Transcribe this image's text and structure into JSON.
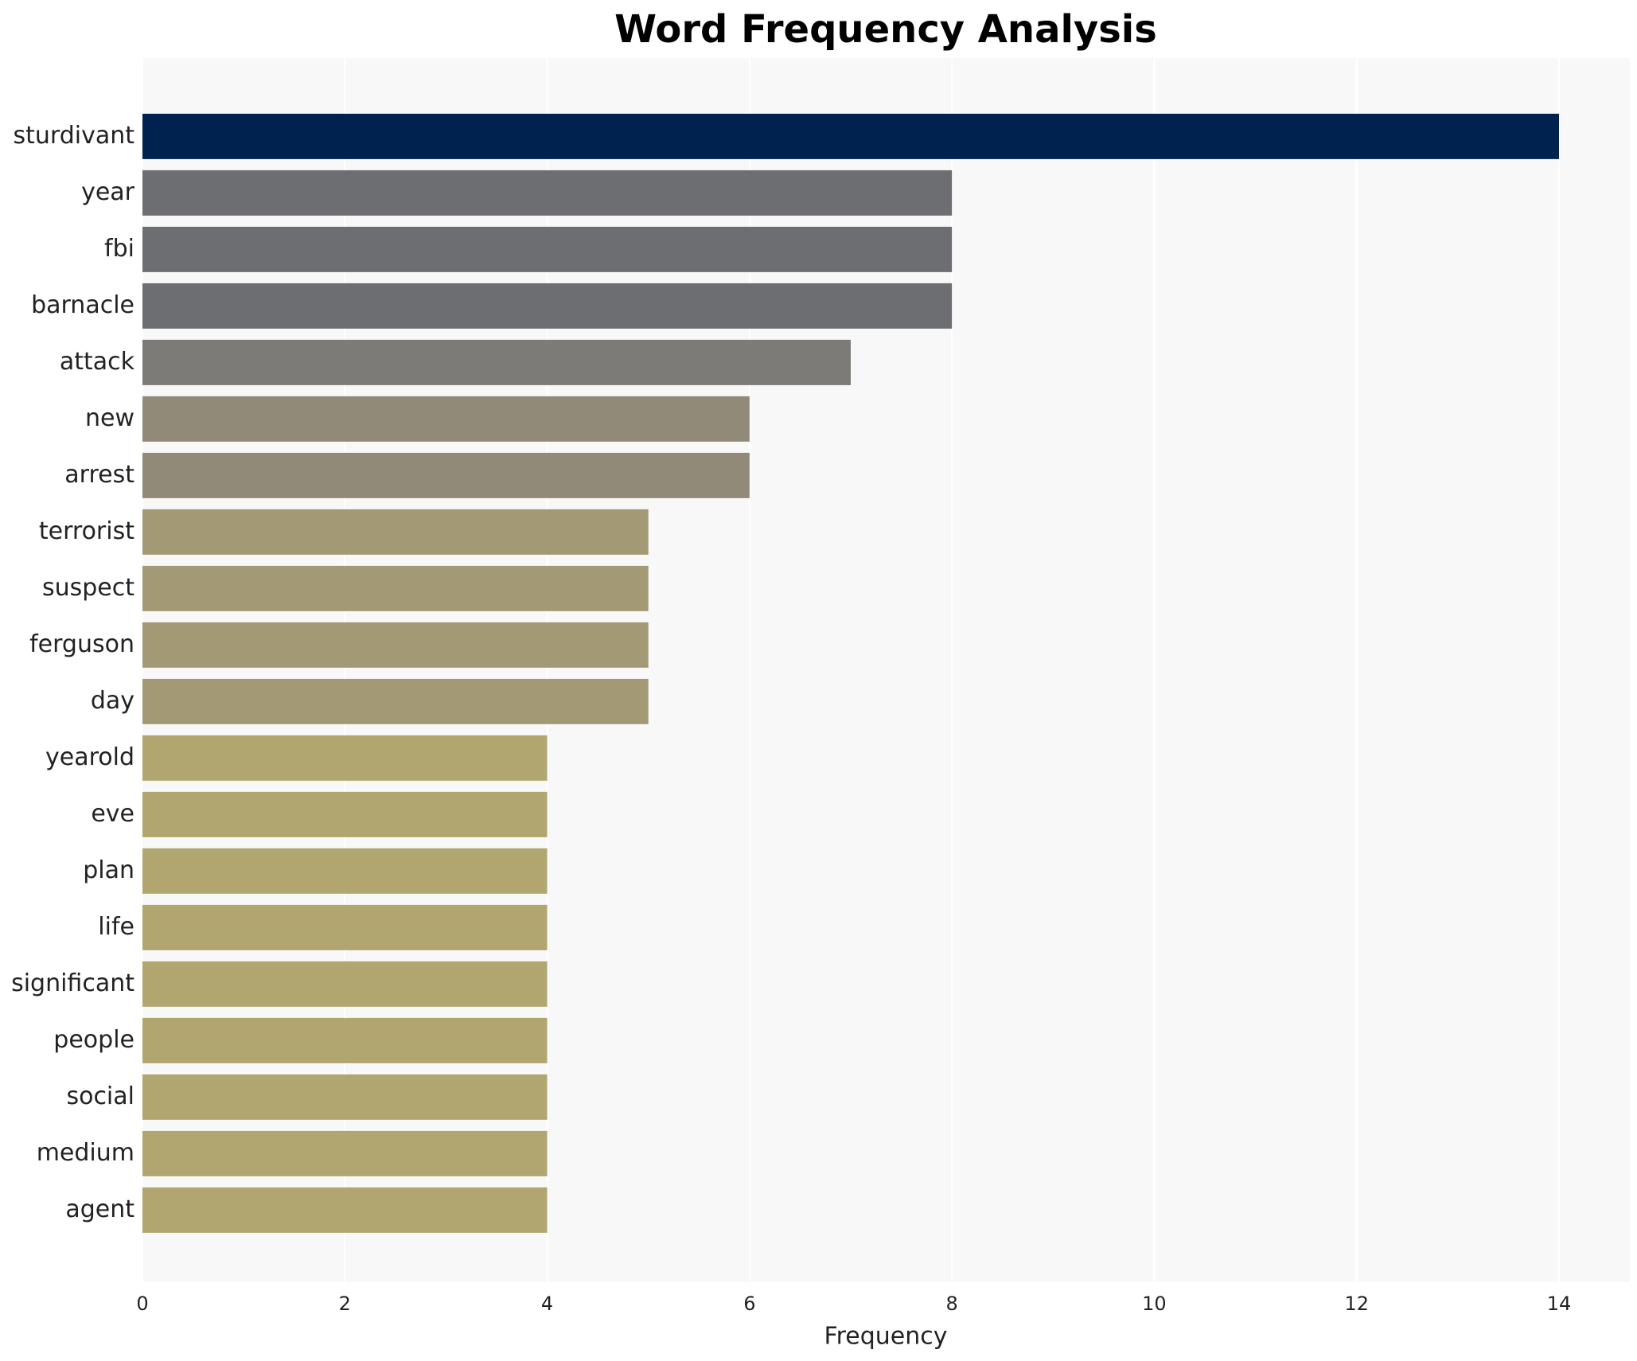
{
  "chart_data": {
    "type": "bar",
    "orientation": "horizontal",
    "title": "Word Frequency Analysis",
    "xlabel": "Frequency",
    "categories": [
      "sturdivant",
      "year",
      "fbi",
      "barnacle",
      "attack",
      "new",
      "arrest",
      "terrorist",
      "suspect",
      "ferguson",
      "day",
      "yearold",
      "eve",
      "plan",
      "life",
      "significant",
      "people",
      "social",
      "medium",
      "agent"
    ],
    "values": [
      14,
      8,
      8,
      8,
      7,
      6,
      6,
      5,
      5,
      5,
      5,
      4,
      4,
      4,
      4,
      4,
      4,
      4,
      4,
      4
    ],
    "colors": [
      "#00224e",
      "#6d6e71",
      "#6d6e71",
      "#6d6e71",
      "#7c7b77",
      "#918a78",
      "#918a78",
      "#a39a75",
      "#a39a75",
      "#a39a75",
      "#a39a75",
      "#b1a66f",
      "#b1a66f",
      "#b1a66f",
      "#b1a66f",
      "#b1a66f",
      "#b1a66f",
      "#b1a66f",
      "#b1a66f",
      "#b1a66f"
    ],
    "xlim": [
      0,
      14.7
    ],
    "xticks": [
      0,
      2,
      4,
      6,
      8,
      10,
      12,
      14
    ],
    "grid": true
  }
}
